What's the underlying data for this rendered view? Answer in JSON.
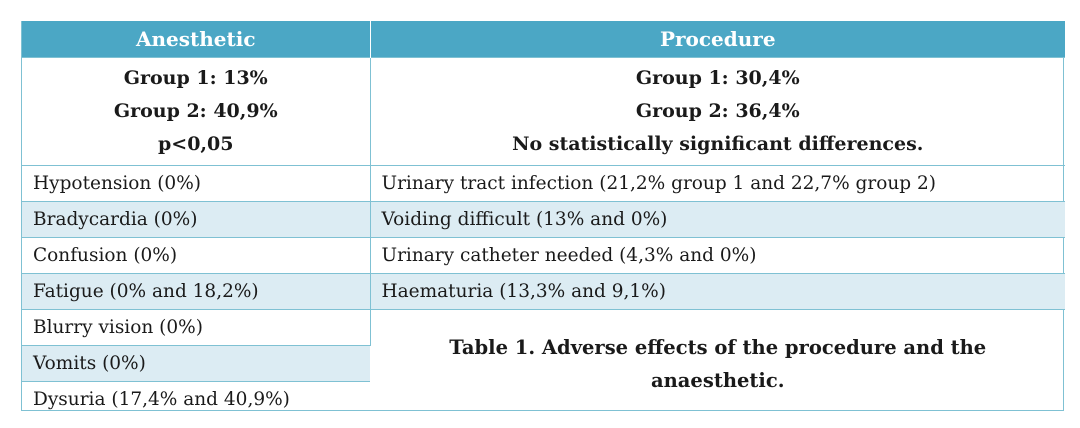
{
  "table": {
    "headers": {
      "anesthetic": "Anesthetic",
      "procedure": "Procedure"
    },
    "summary": {
      "anesthetic": [
        "Group 1: 13%",
        "Group 2: 40,9%",
        "p<0,05"
      ],
      "procedure": [
        "Group 1: 30,4%",
        "Group 2: 36,4%",
        "No statistically significant differences."
      ]
    },
    "anesthetic_effects": [
      "Hypotension (0%)",
      "Bradycardia (0%)",
      "Confusion (0%)",
      "Fatigue (0% and 18,2%)",
      "Blurry vision (0%)",
      "Vomits (0%)",
      "Dysuria (17,4% and 40,9%)"
    ],
    "procedure_effects": [
      "Urinary tract infection (21,2% group 1 and  22,7% group 2)",
      "Voiding difficult (13% and 0%)",
      "Urinary catheter needed (4,3% and 0%)",
      "Haematuria (13,3% and 9,1%)"
    ],
    "caption": "Table 1. Adverse effects of the procedure and the anaesthetic."
  },
  "colors": {
    "header_bg": "#4ba7c5",
    "band_bg": "#dcecf3",
    "border": "#7fc1d3"
  }
}
